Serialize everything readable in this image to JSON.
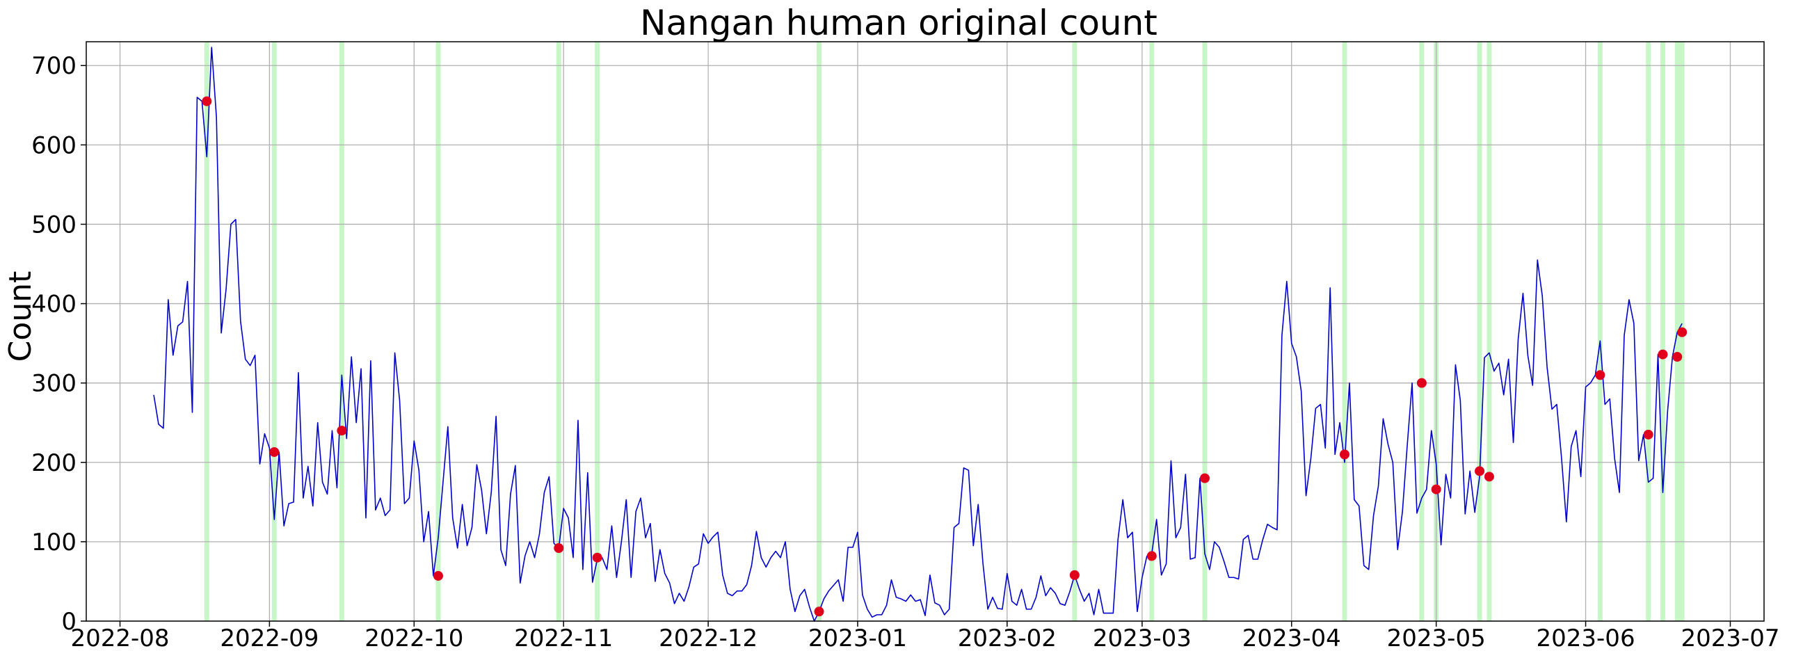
{
  "chart_data": {
    "type": "line",
    "title": "Nangan human original count",
    "xlabel": "",
    "ylabel": "Count",
    "x_axis": "date",
    "xlim": [
      "2022-07-25",
      "2023-07-08"
    ],
    "ylim": [
      0,
      730
    ],
    "x_ticks": [
      "2022-08",
      "2022-09",
      "2022-10",
      "2022-11",
      "2022-12",
      "2023-01",
      "2023-02",
      "2023-03",
      "2023-04",
      "2023-05",
      "2023-06",
      "2023-07"
    ],
    "y_ticks": [
      0,
      100,
      200,
      300,
      400,
      500,
      600,
      700
    ],
    "grid": true,
    "line_color": "#0000cc",
    "marker_color": "#e0001b",
    "band_color": "#90ee90",
    "series": [
      {
        "start_date": "2022-08-08",
        "values": [
          285,
          248,
          243,
          405,
          335,
          372,
          377,
          428,
          263,
          660,
          655,
          585,
          723,
          635,
          363,
          418,
          500,
          506,
          378,
          330,
          322,
          335,
          198,
          236,
          218,
          128,
          213,
          120,
          148,
          150,
          313,
          155,
          195,
          145,
          250,
          175,
          160,
          240,
          168,
          310,
          230,
          333,
          250,
          318,
          130,
          328,
          140,
          155,
          133,
          140,
          338,
          278,
          148,
          155,
          227,
          190,
          100,
          138,
          57,
          105,
          175,
          245,
          130,
          92,
          147,
          95,
          118,
          197,
          165,
          110,
          162,
          258,
          90,
          70,
          160,
          196,
          48,
          82,
          100,
          80,
          110,
          162,
          182,
          98,
          92,
          142,
          130,
          80,
          253,
          65,
          187,
          49,
          78,
          80,
          65,
          120,
          55,
          100,
          153,
          55,
          138,
          155,
          105,
          123,
          50,
          90,
          60,
          48,
          22,
          35,
          25,
          43,
          68,
          72,
          110,
          98,
          106,
          112,
          58,
          35,
          32,
          38,
          38,
          46,
          70,
          113,
          80,
          68,
          80,
          88,
          80,
          100,
          40,
          12,
          32,
          40,
          18,
          0,
          12,
          28,
          38,
          45,
          52,
          25,
          93,
          93,
          112,
          33,
          15,
          5,
          8,
          8,
          20,
          52,
          30,
          28,
          25,
          33,
          25,
          27,
          7,
          58,
          23,
          20,
          8,
          15,
          118,
          123,
          193,
          190,
          95,
          147,
          72,
          15,
          30,
          16,
          15,
          60,
          25,
          20,
          40,
          15,
          15,
          30,
          57,
          32,
          42,
          35,
          22,
          20,
          37,
          58,
          40,
          25,
          35,
          8,
          40,
          10,
          10,
          10,
          103,
          153,
          105,
          112,
          12,
          55,
          82,
          85,
          128,
          58,
          72,
          202,
          105,
          118,
          185,
          78,
          80,
          180,
          85,
          65,
          100,
          93,
          75,
          55,
          55,
          53,
          103,
          108,
          78,
          78,
          102,
          122,
          118,
          115,
          360,
          428,
          350,
          333,
          290,
          158,
          205,
          268,
          273,
          218,
          420,
          210,
          250,
          200,
          300,
          153,
          145,
          70,
          65,
          133,
          170,
          255,
          223,
          200,
          90,
          138,
          222,
          300,
          136,
          155,
          166,
          240,
          198,
          96,
          185,
          155,
          323,
          278,
          135,
          189,
          137,
          182,
          332,
          338,
          315,
          325,
          285,
          330,
          225,
          355,
          413,
          335,
          297,
          455,
          410,
          320,
          267,
          273,
          205,
          125,
          220,
          240,
          182,
          295,
          300,
          310,
          353,
          273,
          280,
          205,
          162,
          360,
          405,
          375,
          202,
          235,
          175,
          180,
          336,
          162,
          265,
          333,
          364,
          375
        ]
      }
    ],
    "highlight_points": [
      {
        "date": "2022-08-19",
        "value": 655
      },
      {
        "date": "2022-09-02",
        "value": 213
      },
      {
        "date": "2022-09-16",
        "value": 240
      },
      {
        "date": "2022-10-06",
        "value": 57
      },
      {
        "date": "2022-10-31",
        "value": 92
      },
      {
        "date": "2022-11-08",
        "value": 80
      },
      {
        "date": "2022-12-24",
        "value": 12
      },
      {
        "date": "2023-02-15",
        "value": 58
      },
      {
        "date": "2023-03-03",
        "value": 82
      },
      {
        "date": "2023-03-14",
        "value": 180
      },
      {
        "date": "2023-04-12",
        "value": 210
      },
      {
        "date": "2023-04-28",
        "value": 300
      },
      {
        "date": "2023-05-01",
        "value": 166
      },
      {
        "date": "2023-05-10",
        "value": 189
      },
      {
        "date": "2023-05-12",
        "value": 182
      },
      {
        "date": "2023-06-04",
        "value": 310
      },
      {
        "date": "2023-06-14",
        "value": 235
      },
      {
        "date": "2023-06-17",
        "value": 336
      },
      {
        "date": "2023-06-20",
        "value": 333
      },
      {
        "date": "2023-06-21",
        "value": 364
      }
    ],
    "highlight_bands": [
      "2022-08-19",
      "2022-09-02",
      "2022-09-16",
      "2022-10-06",
      "2022-10-31",
      "2022-11-08",
      "2022-12-24",
      "2023-02-15",
      "2023-03-03",
      "2023-03-14",
      "2023-04-12",
      "2023-04-28",
      "2023-05-01",
      "2023-05-10",
      "2023-05-12",
      "2023-06-04",
      "2023-06-14",
      "2023-06-17",
      "2023-06-20",
      "2023-06-21"
    ]
  }
}
